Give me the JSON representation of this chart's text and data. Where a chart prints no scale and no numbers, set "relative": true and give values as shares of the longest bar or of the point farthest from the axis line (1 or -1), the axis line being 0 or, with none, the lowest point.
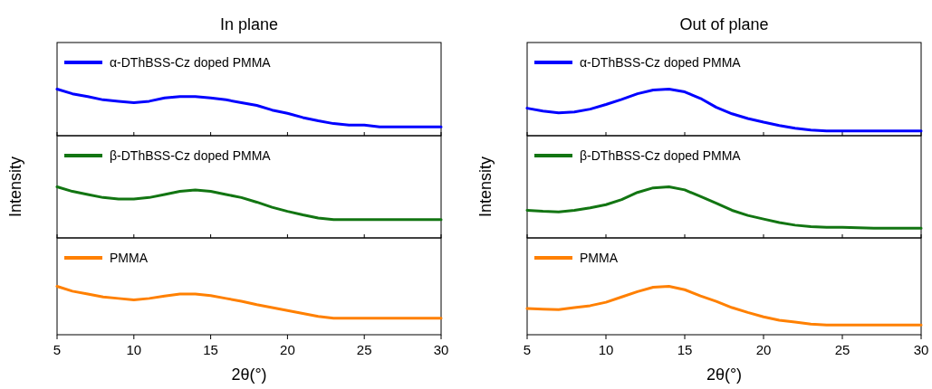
{
  "chart_data": [
    {
      "type": "line",
      "title": "In plane",
      "relative": true,
      "xlim": [
        5,
        30
      ],
      "xticks": [
        5,
        10,
        15,
        20,
        25,
        30
      ],
      "tick_labels": false,
      "legend": "top left",
      "x": [
        5,
        6,
        7,
        8,
        9,
        10,
        11,
        12,
        13,
        14,
        15,
        16,
        17,
        18,
        19,
        20,
        21,
        22,
        23,
        24,
        25,
        26,
        27,
        28,
        29,
        30
      ],
      "series": [
        {
          "name": "α-DThBSS-Cz doped PMMA",
          "color": "#0000ff",
          "values": [
            1,
            0.9,
            0.84,
            0.77,
            0.74,
            0.71,
            0.74,
            0.81,
            0.84,
            0.84,
            0.81,
            0.77,
            0.71,
            0.65,
            0.55,
            0.48,
            0.39,
            0.32,
            0.26,
            0.23,
            0.23,
            0.19,
            0.19,
            0.19,
            0.19,
            0.19
          ]
        }
      ]
    },
    {
      "type": "line",
      "title": "Out of plane",
      "relative": true,
      "xlim": [
        5,
        30
      ],
      "xticks": [
        5,
        10,
        15,
        20,
        25,
        30
      ],
      "tick_labels": false,
      "legend": "top left",
      "x": [
        5,
        6,
        7,
        8,
        9,
        10,
        11,
        12,
        13,
        14,
        15,
        16,
        17,
        18,
        19,
        20,
        21,
        22,
        23,
        24,
        25,
        26,
        27,
        28,
        29,
        30
      ],
      "series": [
        {
          "name": "α-DThBSS-Cz doped PMMA",
          "color": "#0000ff",
          "values": [
            0.59,
            0.53,
            0.49,
            0.51,
            0.57,
            0.67,
            0.78,
            0.9,
            0.98,
            1,
            0.94,
            0.8,
            0.61,
            0.47,
            0.37,
            0.29,
            0.22,
            0.16,
            0.12,
            0.1,
            0.1,
            0.1,
            0.1,
            0.1,
            0.1,
            0.1
          ]
        }
      ]
    },
    {
      "type": "line",
      "ylabel": "Intensity",
      "relative": true,
      "xlim": [
        5,
        30
      ],
      "xticks": [
        5,
        10,
        15,
        20,
        25,
        30
      ],
      "tick_labels": false,
      "legend": "top left",
      "x": [
        5,
        6,
        7,
        8,
        9,
        10,
        11,
        12,
        13,
        14,
        15,
        16,
        17,
        18,
        19,
        20,
        21,
        22,
        23,
        24,
        25,
        26,
        27,
        28,
        29,
        30
      ],
      "series": [
        {
          "name": "β-DThBSS-Cz doped PMMA",
          "color": "#127512",
          "values": [
            1,
            0.91,
            0.85,
            0.79,
            0.76,
            0.76,
            0.79,
            0.85,
            0.91,
            0.94,
            0.91,
            0.85,
            0.79,
            0.7,
            0.6,
            0.52,
            0.45,
            0.39,
            0.36,
            0.36,
            0.36,
            0.36,
            0.36,
            0.36,
            0.36,
            0.36
          ]
        }
      ]
    },
    {
      "type": "line",
      "ylabel": "Intensity",
      "relative": true,
      "xlim": [
        5,
        30
      ],
      "xticks": [
        5,
        10,
        15,
        20,
        25,
        30
      ],
      "tick_labels": false,
      "legend": "top left",
      "x": [
        5,
        6,
        7,
        8,
        9,
        10,
        11,
        12,
        13,
        14,
        15,
        16,
        17,
        18,
        19,
        20,
        21,
        22,
        23,
        24,
        25,
        26,
        27,
        28,
        29,
        30
      ],
      "series": [
        {
          "name": "β-DThBSS-Cz doped PMMA",
          "color": "#127512",
          "values": [
            0.54,
            0.52,
            0.51,
            0.54,
            0.59,
            0.65,
            0.75,
            0.89,
            0.98,
            1,
            0.94,
            0.81,
            0.68,
            0.54,
            0.44,
            0.37,
            0.3,
            0.25,
            0.22,
            0.21,
            0.21,
            0.2,
            0.19,
            0.19,
            0.19,
            0.19
          ]
        }
      ]
    },
    {
      "type": "line",
      "xlabel": "2θ(°)",
      "relative": true,
      "xlim": [
        5,
        30
      ],
      "xticks": [
        5,
        10,
        15,
        20,
        25,
        30
      ],
      "tick_labels": "x",
      "legend": "top left",
      "x": [
        5,
        6,
        7,
        8,
        9,
        10,
        11,
        12,
        13,
        14,
        15,
        16,
        17,
        18,
        19,
        20,
        21,
        22,
        23,
        24,
        25,
        26,
        27,
        28,
        29,
        30
      ],
      "series": [
        {
          "name": "PMMA",
          "color": "#ff8000",
          "values": [
            1,
            0.9,
            0.84,
            0.78,
            0.75,
            0.72,
            0.75,
            0.8,
            0.84,
            0.84,
            0.81,
            0.75,
            0.69,
            0.62,
            0.56,
            0.5,
            0.44,
            0.38,
            0.34,
            0.34,
            0.34,
            0.34,
            0.34,
            0.34,
            0.34,
            0.34
          ]
        }
      ]
    },
    {
      "type": "line",
      "xlabel": "2θ(°)",
      "relative": true,
      "xlim": [
        5,
        30
      ],
      "xticks": [
        5,
        10,
        15,
        20,
        25,
        30
      ],
      "tick_labels": "x",
      "legend": "top left",
      "x": [
        5,
        6,
        7,
        8,
        9,
        10,
        11,
        12,
        13,
        14,
        15,
        16,
        17,
        18,
        19,
        20,
        21,
        22,
        23,
        24,
        25,
        26,
        27,
        28,
        29,
        30
      ],
      "series": [
        {
          "name": "PMMA",
          "color": "#ff8000",
          "values": [
            0.54,
            0.53,
            0.52,
            0.56,
            0.6,
            0.67,
            0.78,
            0.89,
            0.98,
            1,
            0.93,
            0.8,
            0.69,
            0.56,
            0.46,
            0.37,
            0.3,
            0.26,
            0.22,
            0.2,
            0.2,
            0.2,
            0.2,
            0.2,
            0.2,
            0.2
          ]
        }
      ]
    }
  ]
}
